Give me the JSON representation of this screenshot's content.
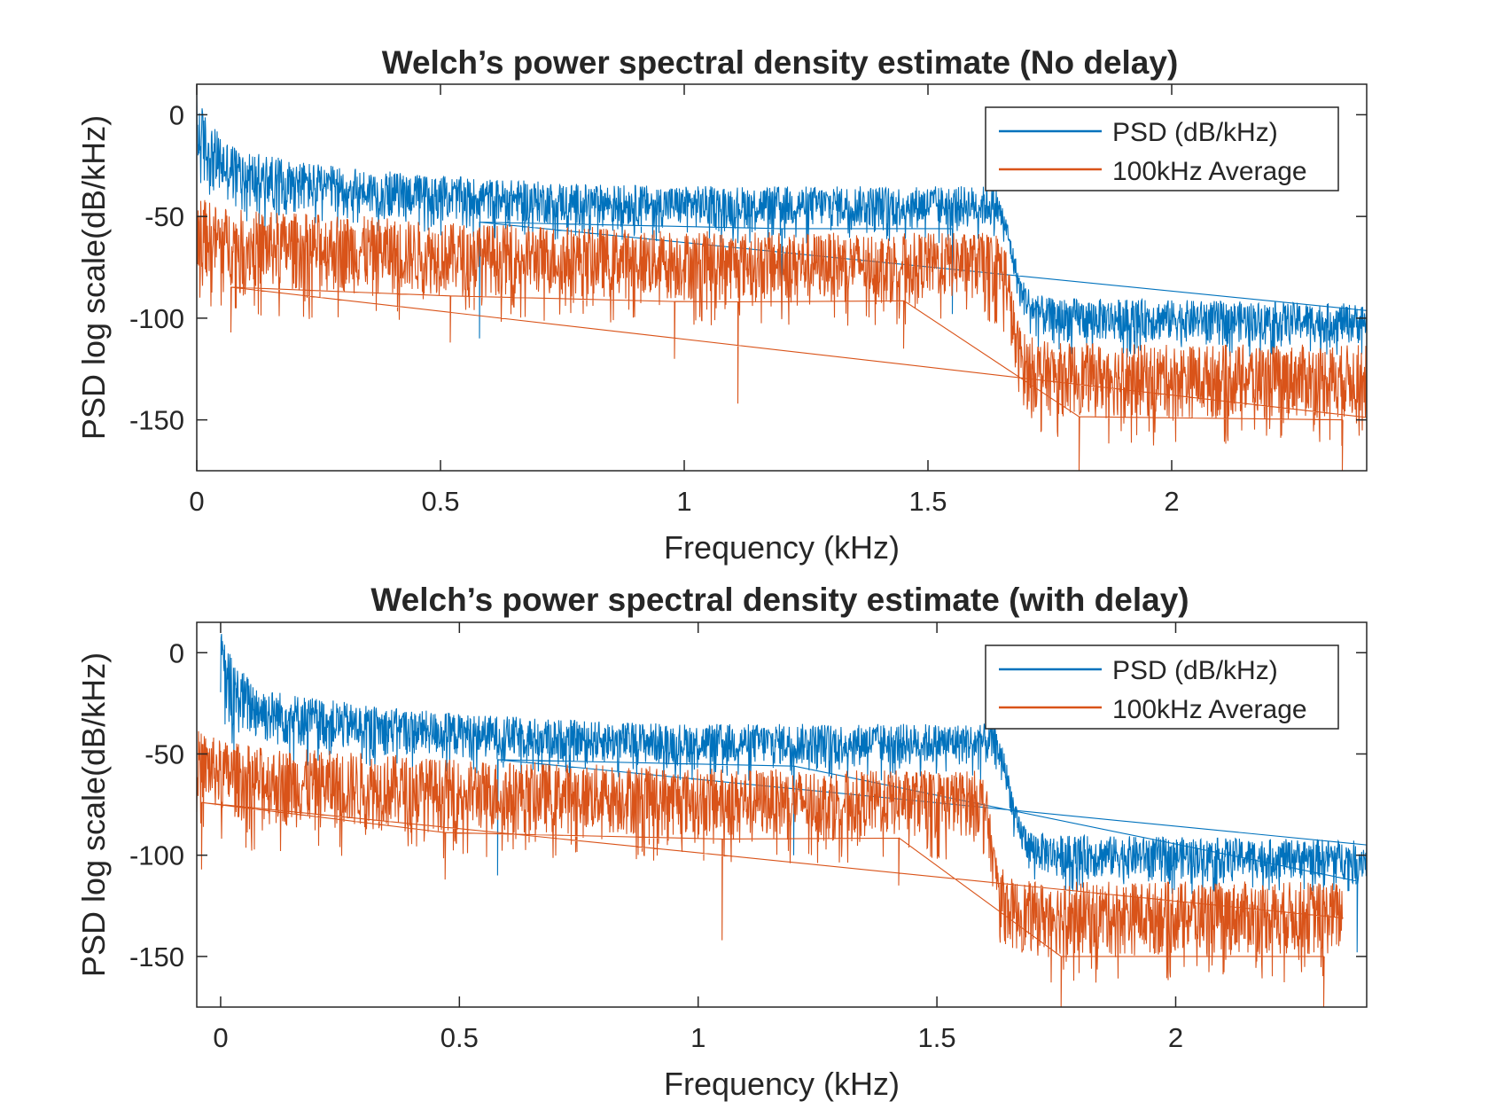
{
  "figure": {
    "background": "#ffffff",
    "axes_color": "#262626",
    "series_colors": {
      "psd": "#0072BD",
      "avg": "#D95319"
    }
  },
  "chart_data": [
    {
      "type": "line",
      "title": "Welch’s power spectral density estimate (No delay)",
      "xlabel": "Frequency (kHz)",
      "ylabel": "PSD log scale(dB/kHz)",
      "xlim": [
        0,
        2.4
      ],
      "ylim": [
        -175,
        15
      ],
      "xticks": [
        0,
        0.5,
        1,
        1.5,
        2
      ],
      "xtick_labels": [
        "0",
        "0.5",
        "1",
        "1.5",
        "2"
      ],
      "yticks": [
        0,
        -50,
        -100,
        -150
      ],
      "ytick_labels": [
        "0",
        "-50",
        "-100",
        "-150"
      ],
      "grid": false,
      "legend": {
        "location": "top-right",
        "entries": [
          "PSD (dB/kHz)",
          "100kHz Average"
        ]
      },
      "series": [
        {
          "name": "PSD (dB/kHz)",
          "color": "#0072BD",
          "x_range": [
            0,
            2.4
          ],
          "envelope": {
            "x": [
              0,
              0.01,
              0.03,
              0.06,
              0.1,
              0.2,
              0.3,
              0.5,
              0.8,
              1.0,
              1.3,
              1.55,
              1.64,
              1.66,
              1.69,
              1.72,
              1.75,
              2.0,
              2.2,
              2.4
            ],
            "upper": [
              12,
              5,
              -5,
              -12,
              -18,
              -22,
              -26,
              -30,
              -34,
              -35,
              -35,
              -35,
              -35,
              -50,
              -80,
              -88,
              -90,
              -91,
              -92,
              -93
            ],
            "lower": [
              -35,
              -38,
              -40,
              -43,
              -46,
              -48,
              -50,
              -52,
              -55,
              -56,
              -56,
              -56,
              -56,
              -62,
              -97,
              -107,
              -112,
              -112,
              -112,
              -113
            ]
          },
          "dips": [
            [
              0.58,
              -110
            ],
            [
              1.2,
              -100
            ],
            [
              1.55,
              -98
            ]
          ]
        },
        {
          "name": "100kHz Average",
          "color": "#D95319",
          "x_range": [
            0,
            2.4
          ],
          "envelope": {
            "x": [
              0,
              0.02,
              0.05,
              0.1,
              0.3,
              0.5,
              0.8,
              1.0,
              1.3,
              1.6,
              1.64,
              1.66,
              1.68,
              1.7,
              1.75,
              2.0,
              2.4
            ],
            "upper": [
              -40,
              -42,
              -45,
              -47,
              -49,
              -53,
              -55,
              -57,
              -58,
              -58,
              -58,
              -64,
              -98,
              -108,
              -112,
              -113,
              -113
            ],
            "lower": [
              -78,
              -81,
              -84,
              -86,
              -88,
              -89,
              -90,
              -92,
              -92,
              -91,
              -92,
              -97,
              -133,
              -146,
              -148,
              -150,
              -150
            ]
          },
          "dips": [
            [
              0.07,
              -107
            ],
            [
              0.52,
              -112
            ],
            [
              0.98,
              -120
            ],
            [
              1.11,
              -142
            ],
            [
              1.45,
              -115
            ],
            [
              1.81,
              -175
            ],
            [
              2.35,
              -175
            ]
          ]
        }
      ]
    },
    {
      "type": "line",
      "title": "Welch’s power spectral density estimate (with delay)",
      "xlabel": "Frequency (kHz)",
      "ylabel": "PSD log scale(dB/kHz)",
      "xlim": [
        -0.05,
        2.4
      ],
      "ylim": [
        -175,
        15
      ],
      "xticks": [
        0,
        0.5,
        1,
        1.5,
        2
      ],
      "xtick_labels": [
        "0",
        "0.5",
        "1",
        "1.5",
        "2"
      ],
      "yticks": [
        0,
        -50,
        -100,
        -150
      ],
      "ytick_labels": [
        "0",
        "-50",
        "-100",
        "-150"
      ],
      "grid": false,
      "legend": {
        "location": "top-right",
        "entries": [
          "PSD (dB/kHz)",
          "100kHz Average"
        ]
      },
      "series": [
        {
          "name": "PSD (dB/kHz)",
          "color": "#0072BD",
          "x_range": [
            0,
            2.4
          ],
          "envelope": {
            "x": [
              0,
              0.01,
              0.03,
              0.06,
              0.1,
              0.2,
              0.3,
              0.5,
              0.8,
              1.0,
              1.3,
              1.55,
              1.62,
              1.64,
              1.67,
              1.7,
              1.75,
              2.0,
              2.2,
              2.3,
              2.4
            ],
            "upper": [
              12,
              5,
              -5,
              -12,
              -18,
              -22,
              -26,
              -30,
              -34,
              -35,
              -35,
              -35,
              -35,
              -48,
              -80,
              -88,
              -90,
              -91,
              -92,
              -92,
              -93
            ],
            "lower": [
              -35,
              -38,
              -40,
              -43,
              -46,
              -48,
              -50,
              -52,
              -55,
              -56,
              -56,
              -56,
              -56,
              -62,
              -97,
              -107,
              -112,
              -112,
              -112,
              -112,
              -113
            ]
          },
          "dips": [
            [
              0.58,
              -110
            ],
            [
              1.2,
              -100
            ],
            [
              2.38,
              -148
            ]
          ]
        },
        {
          "name": "100kHz Average",
          "color": "#D95319",
          "x_range": [
            -0.05,
            2.35
          ],
          "envelope": {
            "x": [
              -0.05,
              -0.03,
              0,
              0.05,
              0.1,
              0.3,
              0.5,
              0.8,
              1.0,
              1.3,
              1.58,
              1.6,
              1.62,
              1.64,
              1.66,
              1.7,
              2.0,
              2.35
            ],
            "upper": [
              -38,
              -40,
              -43,
              -45,
              -47,
              -49,
              -53,
              -55,
              -57,
              -58,
              -58,
              -60,
              -95,
              -108,
              -112,
              -113,
              -113,
              -113
            ],
            "lower": [
              -72,
              -76,
              -80,
              -84,
              -86,
              -88,
              -89,
              -90,
              -92,
              -92,
              -91,
              -92,
              -120,
              -143,
              -148,
              -150,
              -150,
              -150
            ]
          },
          "dips": [
            [
              -0.04,
              -107
            ],
            [
              0.47,
              -112
            ],
            [
              1.05,
              -142
            ],
            [
              1.42,
              -115
            ],
            [
              1.76,
              -175
            ],
            [
              2.31,
              -175
            ]
          ]
        }
      ]
    }
  ]
}
